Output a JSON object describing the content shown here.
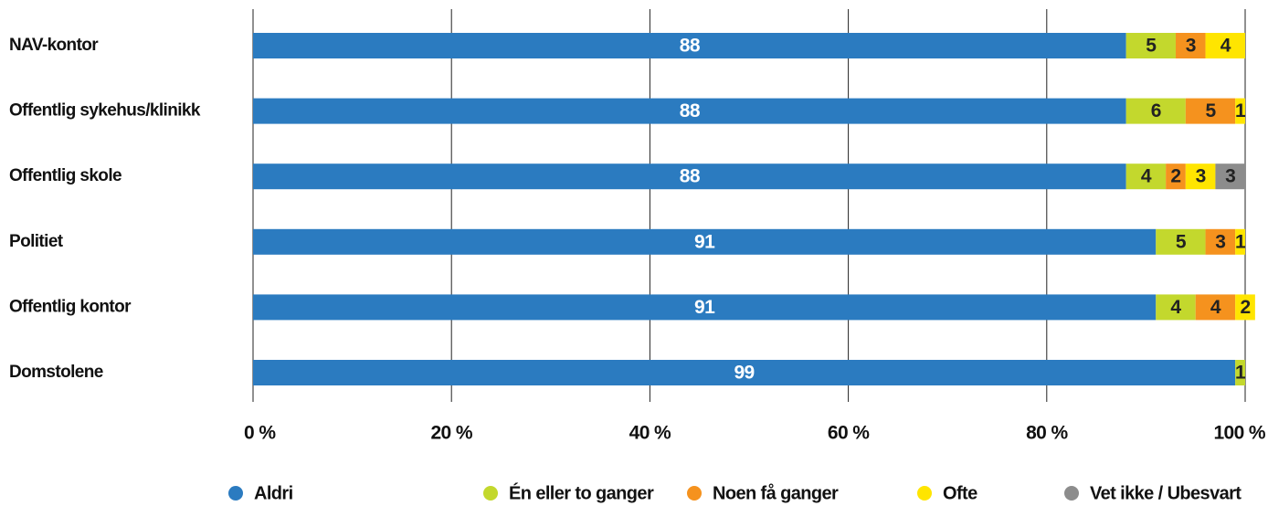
{
  "chart_data": {
    "type": "stacked-bar-horizontal",
    "categories": [
      "NAV-kontor",
      "Offentlig sykehus/klinikk",
      "Offentlig skole",
      "Politiet",
      "Offentlig kontor",
      "Domstolene"
    ],
    "series": [
      {
        "name": "Aldri",
        "color": "#2b7bc0",
        "values": [
          88,
          88,
          88,
          91,
          91,
          99
        ]
      },
      {
        "name": "Én eller to ganger",
        "color": "#c3d82d",
        "values": [
          5,
          6,
          4,
          5,
          4,
          1
        ]
      },
      {
        "name": "Noen få ganger",
        "color": "#f5921e",
        "values": [
          3,
          5,
          2,
          3,
          4,
          null
        ]
      },
      {
        "name": "Ofte",
        "color": "#ffe500",
        "values": [
          4,
          1,
          3,
          1,
          2,
          null
        ]
      },
      {
        "name": "Vet ikke / Ubesvart",
        "color": "#8c8c8c",
        "values": [
          null,
          null,
          3,
          null,
          null,
          null
        ]
      }
    ],
    "xlim": [
      0,
      100
    ],
    "xticks": [
      {
        "value": 0,
        "label": "0 %"
      },
      {
        "value": 20,
        "label": "20 %"
      },
      {
        "value": 40,
        "label": "40 %"
      },
      {
        "value": 60,
        "label": "60 %"
      },
      {
        "value": 80,
        "label": "80 %"
      },
      {
        "value": 100,
        "label": "100 %"
      }
    ],
    "grid": true
  }
}
